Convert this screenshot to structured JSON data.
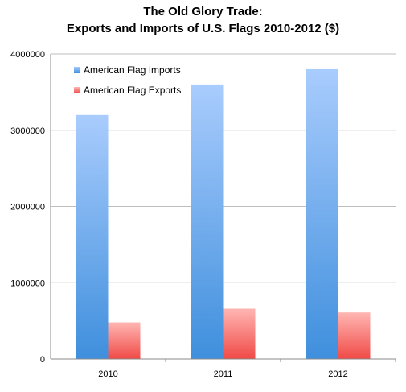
{
  "chart_data": {
    "type": "bar",
    "title": "The Old Glory Trade:",
    "subtitle": "Exports and Imports of U.S. Flags 2010-2012 ($)",
    "categories": [
      "2010",
      "2011",
      "2012"
    ],
    "series": [
      {
        "name": "American Flag Imports",
        "values": [
          3200000,
          3600000,
          3800000
        ],
        "color_top": "#a9ccfd",
        "color_bottom": "#3f8fdd"
      },
      {
        "name": "American Flag Exports",
        "values": [
          480000,
          660000,
          610000
        ],
        "color_top": "#ffb6b3",
        "color_bottom": "#f04a46"
      }
    ],
    "yticks": [
      0,
      1000000,
      2000000,
      3000000,
      4000000
    ],
    "ytick_labels": [
      "0",
      "1000000",
      "2000000",
      "3000000",
      "4000000"
    ],
    "ylim": [
      0,
      4000000
    ],
    "xlabel": "",
    "ylabel": "",
    "grid": true,
    "legend_position": "top-left"
  }
}
